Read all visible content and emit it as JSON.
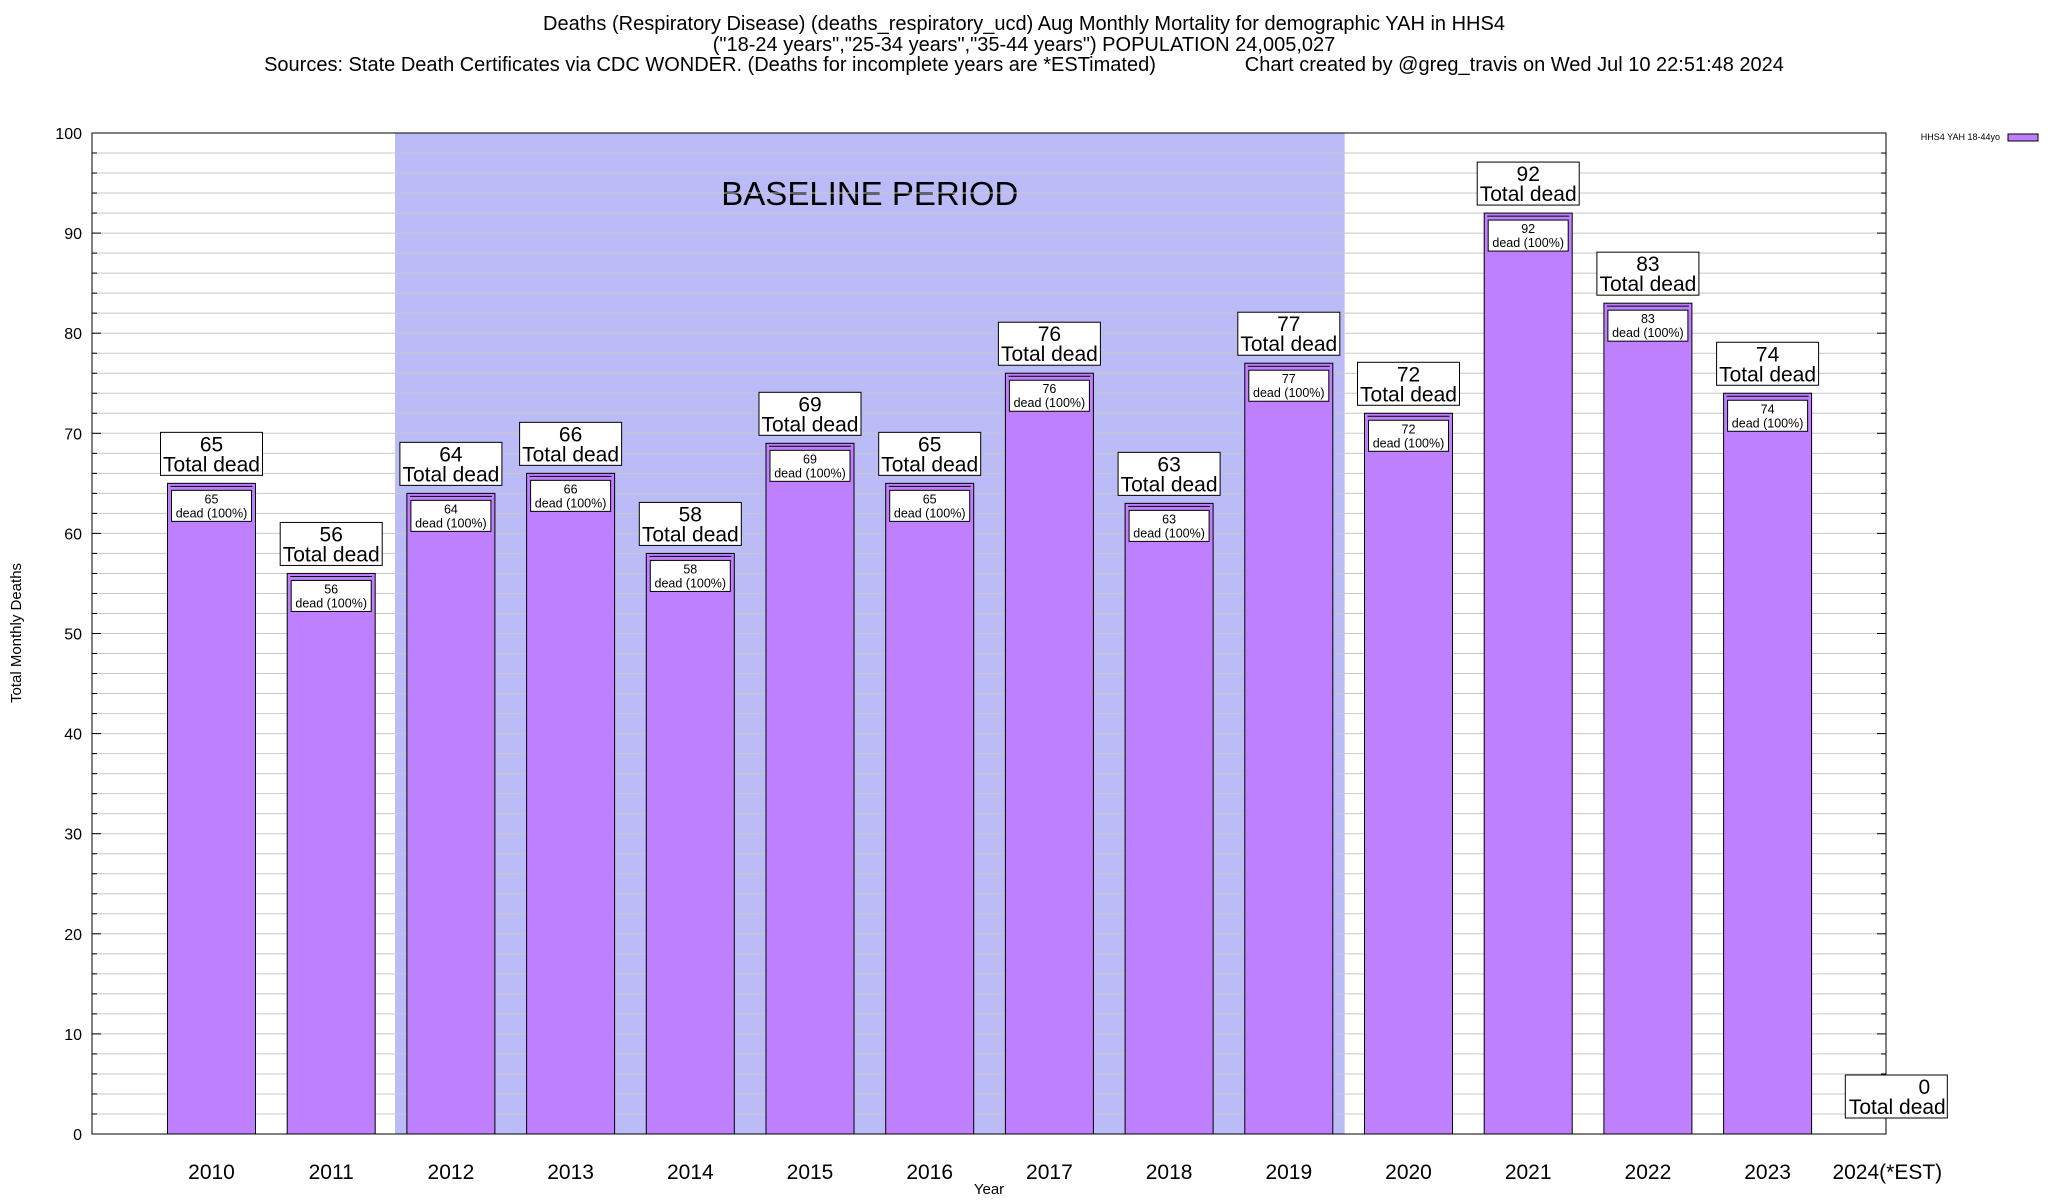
{
  "header": {
    "line1": "Deaths (Respiratory Disease) (deaths_respiratory_ucd) Aug Monthly Mortality for demographic YAH in HHS4",
    "line2": "(\"18-24 years\",\"25-34 years\",\"35-44 years\") POPULATION 24,005,027",
    "line3": "Sources: State Death Certificates via CDC WONDER. (Deaths for incomplete years are *ESTimated)                Chart created by @greg_travis on Wed Jul 10 22:51:48 2024"
  },
  "chart_data": {
    "type": "bar",
    "xlabel": "Year",
    "ylabel": "Total Monthly Deaths",
    "ylim": [
      0,
      100
    ],
    "y_ticks": [
      0,
      10,
      20,
      30,
      40,
      50,
      60,
      70,
      80,
      90,
      100
    ],
    "grid": "horizontal minor lines every 2",
    "categories": [
      "2010",
      "2011",
      "2012",
      "2013",
      "2014",
      "2015",
      "2016",
      "2017",
      "2018",
      "2019",
      "2020",
      "2021",
      "2022",
      "2023",
      "2024(*EST)"
    ],
    "series": [
      {
        "name": "HHS4 YAH 18-44yo",
        "color": "#bf80ff",
        "values": [
          65,
          56,
          64,
          66,
          58,
          69,
          65,
          76,
          63,
          77,
          72,
          92,
          83,
          74,
          0
        ]
      }
    ],
    "total_label_suffix": "Total dead",
    "inner_label_suffix": "dead (100%)",
    "baseline": {
      "label": "BASELINE PERIOD",
      "from": "2012",
      "to": "2019",
      "color": "#bbbbf7"
    },
    "legend_position": "top-right"
  }
}
